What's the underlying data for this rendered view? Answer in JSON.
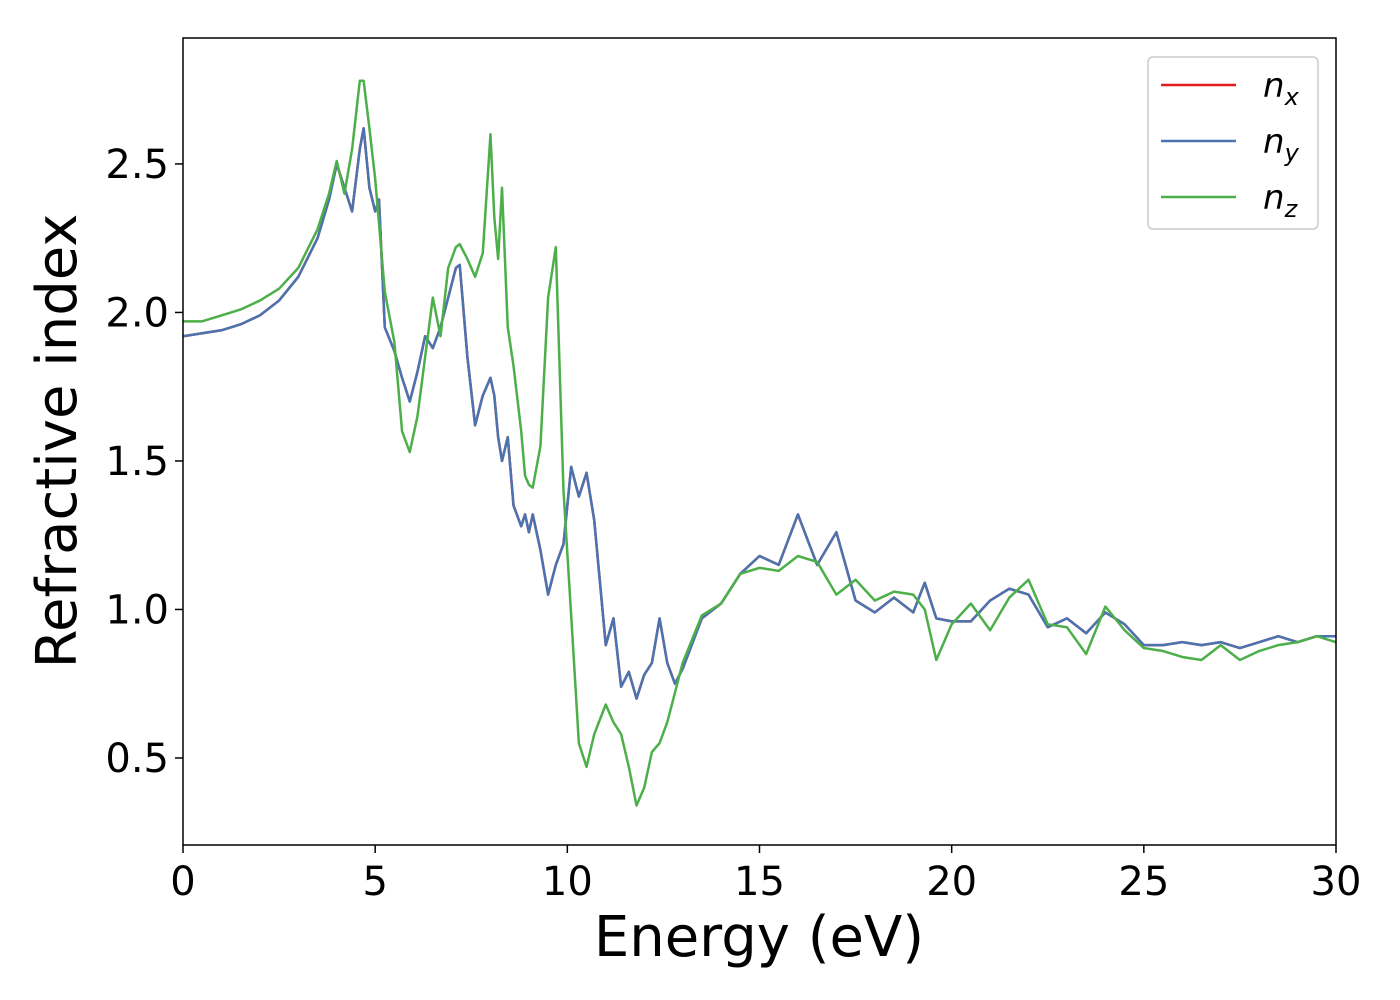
{
  "chart_data": {
    "type": "line",
    "xlabel": "Energy (eV)",
    "ylabel": "Refractive index",
    "xlim": [
      0,
      30
    ],
    "ylim": [
      0.207,
      2.924
    ],
    "xticks": [
      0,
      5,
      10,
      15,
      20,
      25,
      30
    ],
    "yticks": [
      0.5,
      {
        "value": 1.0,
        "label": "1.0"
      },
      1.5,
      {
        "value": 2.0,
        "label": "2.0"
      },
      2.5
    ],
    "legend": "upper right",
    "x": [
      0,
      0.5,
      1,
      1.5,
      2,
      2.5,
      3,
      3.5,
      3.8,
      4.0,
      4.2,
      4.4,
      4.6,
      4.7,
      4.85,
      5.0,
      5.1,
      5.25,
      5.5,
      5.7,
      5.9,
      6.1,
      6.3,
      6.5,
      6.7,
      6.9,
      7.1,
      7.2,
      7.4,
      7.6,
      7.8,
      8.0,
      8.1,
      8.2,
      8.3,
      8.45,
      8.6,
      8.8,
      8.9,
      9.0,
      9.1,
      9.3,
      9.5,
      9.7,
      9.9,
      10.1,
      10.3,
      10.5,
      10.7,
      11.0,
      11.2,
      11.4,
      11.6,
      11.8,
      12.0,
      12.2,
      12.4,
      12.6,
      12.8,
      13.0,
      13.5,
      14,
      14.5,
      15,
      15.5,
      16,
      16.5,
      17,
      17.5,
      18,
      18.5,
      19,
      19.3,
      19.6,
      20,
      20.5,
      21,
      21.5,
      22,
      22.5,
      23,
      23.5,
      24,
      24.5,
      25,
      25.5,
      26,
      26.5,
      27,
      27.5,
      28,
      28.5,
      29,
      29.5,
      30
    ],
    "series": [
      {
        "name": "n_x",
        "color": "#e41a1c",
        "values": [
          1.92,
          1.93,
          1.94,
          1.96,
          1.99,
          2.04,
          2.12,
          2.25,
          2.38,
          2.5,
          2.42,
          2.34,
          2.55,
          2.62,
          2.42,
          2.34,
          2.38,
          1.95,
          1.87,
          1.78,
          1.7,
          1.8,
          1.92,
          1.88,
          1.95,
          2.05,
          2.15,
          2.16,
          1.85,
          1.62,
          1.72,
          1.78,
          1.72,
          1.58,
          1.5,
          1.58,
          1.35,
          1.28,
          1.32,
          1.26,
          1.32,
          1.2,
          1.05,
          1.15,
          1.22,
          1.48,
          1.38,
          1.46,
          1.3,
          0.88,
          0.97,
          0.74,
          0.79,
          0.7,
          0.78,
          0.82,
          0.97,
          0.82,
          0.75,
          0.8,
          0.97,
          1.02,
          1.12,
          1.18,
          1.15,
          1.32,
          1.15,
          1.26,
          1.03,
          0.99,
          1.04,
          0.99,
          1.09,
          0.97,
          0.96,
          0.96,
          1.03,
          1.07,
          1.05,
          0.94,
          0.97,
          0.92,
          0.99,
          0.95,
          0.88,
          0.88,
          0.89,
          0.88,
          0.89,
          0.87,
          0.89,
          0.91,
          0.89,
          0.91,
          0.91
        ]
      },
      {
        "name": "n_y",
        "color": "#4a74b0",
        "values": [
          1.92,
          1.93,
          1.94,
          1.96,
          1.99,
          2.04,
          2.12,
          2.25,
          2.38,
          2.5,
          2.42,
          2.34,
          2.55,
          2.62,
          2.42,
          2.34,
          2.38,
          1.95,
          1.87,
          1.78,
          1.7,
          1.8,
          1.92,
          1.88,
          1.95,
          2.05,
          2.15,
          2.16,
          1.85,
          1.62,
          1.72,
          1.78,
          1.72,
          1.58,
          1.5,
          1.58,
          1.35,
          1.28,
          1.32,
          1.26,
          1.32,
          1.2,
          1.05,
          1.15,
          1.22,
          1.48,
          1.38,
          1.46,
          1.3,
          0.88,
          0.97,
          0.74,
          0.79,
          0.7,
          0.78,
          0.82,
          0.97,
          0.82,
          0.75,
          0.8,
          0.97,
          1.02,
          1.12,
          1.18,
          1.15,
          1.32,
          1.15,
          1.26,
          1.03,
          0.99,
          1.04,
          0.99,
          1.09,
          0.97,
          0.96,
          0.96,
          1.03,
          1.07,
          1.05,
          0.94,
          0.97,
          0.92,
          0.99,
          0.95,
          0.88,
          0.88,
          0.89,
          0.88,
          0.89,
          0.87,
          0.89,
          0.91,
          0.89,
          0.91,
          0.91
        ]
      },
      {
        "name": "n_z",
        "color": "#4daf4a",
        "values": [
          1.97,
          1.97,
          1.99,
          2.01,
          2.04,
          2.08,
          2.15,
          2.28,
          2.4,
          2.51,
          2.4,
          2.55,
          2.78,
          2.78,
          2.62,
          2.45,
          2.3,
          2.07,
          1.9,
          1.6,
          1.53,
          1.65,
          1.85,
          2.05,
          1.92,
          2.15,
          2.22,
          2.23,
          2.18,
          2.12,
          2.2,
          2.6,
          2.32,
          2.18,
          2.42,
          1.95,
          1.82,
          1.6,
          1.45,
          1.42,
          1.41,
          1.55,
          2.05,
          2.22,
          1.4,
          0.98,
          0.55,
          0.47,
          0.58,
          0.68,
          0.62,
          0.58,
          0.47,
          0.34,
          0.4,
          0.52,
          0.55,
          0.62,
          0.72,
          0.82,
          0.98,
          1.02,
          1.12,
          1.14,
          1.13,
          1.18,
          1.16,
          1.05,
          1.1,
          1.03,
          1.06,
          1.05,
          1.0,
          0.83,
          0.95,
          1.02,
          0.93,
          1.04,
          1.1,
          0.95,
          0.94,
          0.85,
          1.01,
          0.93,
          0.87,
          0.86,
          0.84,
          0.83,
          0.88,
          0.83,
          0.86,
          0.88,
          0.89,
          0.91,
          0.89
        ]
      }
    ]
  }
}
